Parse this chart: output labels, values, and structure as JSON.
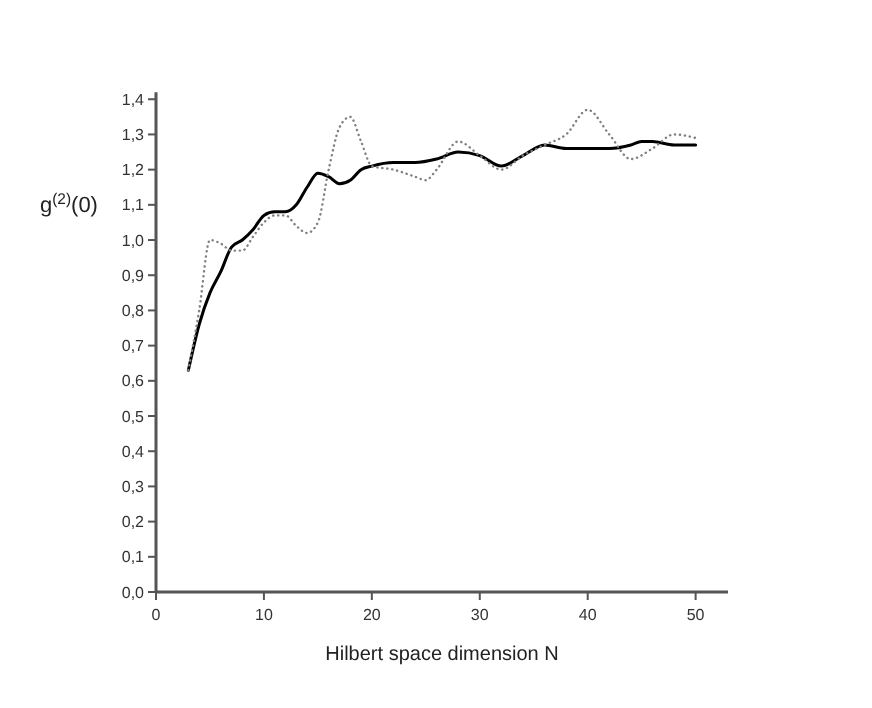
{
  "chart_data": {
    "type": "line",
    "xlabel": "Hilbert space dimension N",
    "ylabel": "g$^{(2)}$(0)",
    "xlim": [
      0,
      53
    ],
    "ylim": [
      0,
      1.42
    ],
    "xticks": [
      0,
      10,
      20,
      30,
      40,
      50
    ],
    "yticks": [
      {
        "value": 0,
        "label": "0,0"
      },
      {
        "value": 0.1,
        "label": "0,1"
      },
      {
        "value": 0.2,
        "label": "0,2"
      },
      {
        "value": 0.3,
        "label": "0,3"
      },
      {
        "value": 0.4,
        "label": "0,4"
      },
      {
        "value": 0.5,
        "label": "0,5"
      },
      {
        "value": 0.6,
        "label": "0,6"
      },
      {
        "value": 0.7,
        "label": "0,7"
      },
      {
        "value": 0.8,
        "label": "0,8"
      },
      {
        "value": 0.9,
        "label": "0,9"
      },
      {
        "value": 1.0,
        "label": "1,0"
      },
      {
        "value": 1.1,
        "label": "1,1"
      },
      {
        "value": 1.2,
        "label": "1,2"
      },
      {
        "value": 1.3,
        "label": "1,3"
      },
      {
        "value": 1.4,
        "label": "1,4"
      }
    ],
    "grid": false,
    "marker": "none",
    "series": [
      {
        "color": "#000000",
        "line_style": "solid",
        "x": [
          3,
          4,
          5,
          6,
          7,
          8,
          9,
          10,
          11,
          12,
          13,
          14,
          15,
          16,
          17,
          18,
          19,
          20,
          22,
          24,
          26,
          28,
          30,
          32,
          34,
          36,
          38,
          40,
          42,
          44,
          45,
          46,
          48,
          50
        ],
        "values": [
          0.63,
          0.76,
          0.85,
          0.91,
          0.98,
          1.0,
          1.03,
          1.07,
          1.08,
          1.08,
          1.1,
          1.15,
          1.19,
          1.18,
          1.16,
          1.17,
          1.2,
          1.21,
          1.22,
          1.22,
          1.23,
          1.25,
          1.24,
          1.21,
          1.24,
          1.27,
          1.26,
          1.26,
          1.26,
          1.27,
          1.28,
          1.28,
          1.27,
          1.27
        ]
      },
      {
        "color": "#808080",
        "line_style": "dotted",
        "x": [
          3,
          4,
          5,
          6,
          7,
          8,
          9,
          10,
          11,
          12,
          13,
          14,
          15,
          16,
          17,
          18,
          19,
          20,
          22,
          24,
          25,
          26,
          28,
          30,
          32,
          34,
          36,
          38,
          40,
          42,
          44,
          46,
          48,
          50
        ],
        "values": [
          0.63,
          0.8,
          1.0,
          0.99,
          0.97,
          0.97,
          1.01,
          1.05,
          1.07,
          1.07,
          1.04,
          1.02,
          1.05,
          1.2,
          1.32,
          1.35,
          1.28,
          1.21,
          1.2,
          1.18,
          1.17,
          1.2,
          1.28,
          1.24,
          1.2,
          1.24,
          1.27,
          1.3,
          1.37,
          1.3,
          1.23,
          1.26,
          1.3,
          1.29
        ]
      }
    ]
  }
}
